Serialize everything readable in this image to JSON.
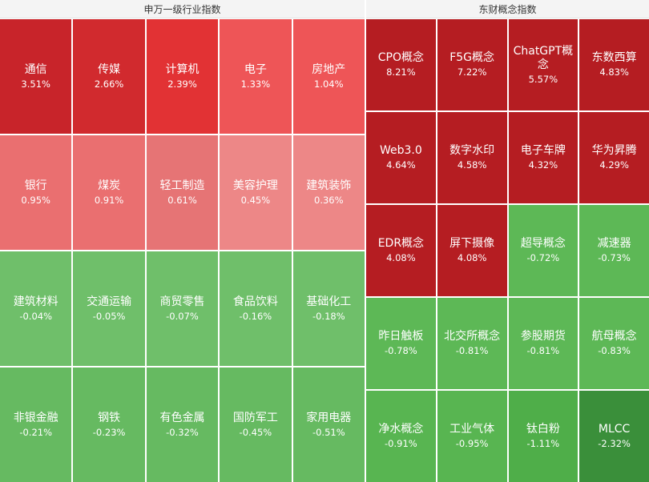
{
  "left_panel": {
    "title": "申万一级行业指数",
    "cells": [
      {
        "name": "通信",
        "pct": "3.51%",
        "color": "#c8242a"
      },
      {
        "name": "传媒",
        "pct": "2.66%",
        "color": "#d12a2e"
      },
      {
        "name": "计算机",
        "pct": "2.39%",
        "color": "#e23234"
      },
      {
        "name": "电子",
        "pct": "1.33%",
        "color": "#ee5557"
      },
      {
        "name": "房地产",
        "pct": "1.04%",
        "color": "#ee5557"
      },
      {
        "name": "银行",
        "pct": "0.95%",
        "color": "#ea6f70"
      },
      {
        "name": "煤炭",
        "pct": "0.91%",
        "color": "#ea6f70"
      },
      {
        "name": "轻工制造",
        "pct": "0.61%",
        "color": "#e67475"
      },
      {
        "name": "美容护理",
        "pct": "0.45%",
        "color": "#ed8787"
      },
      {
        "name": "建筑装饰",
        "pct": "0.36%",
        "color": "#ed8787"
      },
      {
        "name": "建筑材料",
        "pct": "-0.04%",
        "color": "#6fbf6a"
      },
      {
        "name": "交通运输",
        "pct": "-0.05%",
        "color": "#6fbf6a"
      },
      {
        "name": "商贸零售",
        "pct": "-0.07%",
        "color": "#6fbf6a"
      },
      {
        "name": "食品饮料",
        "pct": "-0.16%",
        "color": "#6fbf6a"
      },
      {
        "name": "基础化工",
        "pct": "-0.18%",
        "color": "#6fbf6a"
      },
      {
        "name": "非银金融",
        "pct": "-0.21%",
        "color": "#66ba61"
      },
      {
        "name": "钢铁",
        "pct": "-0.23%",
        "color": "#66ba61"
      },
      {
        "name": "有色金属",
        "pct": "-0.32%",
        "color": "#66ba61"
      },
      {
        "name": "国防军工",
        "pct": "-0.45%",
        "color": "#66ba61"
      },
      {
        "name": "家用电器",
        "pct": "-0.51%",
        "color": "#66ba61"
      }
    ]
  },
  "right_panel": {
    "title": "东财概念指数",
    "cells": [
      {
        "name": "CPO概念",
        "pct": "8.21%",
        "color": "#b51d22"
      },
      {
        "name": "F5G概念",
        "pct": "7.22%",
        "color": "#b51d22"
      },
      {
        "name": "ChatGPT概念",
        "pct": "5.57%",
        "color": "#b51d22"
      },
      {
        "name": "东数西算",
        "pct": "4.83%",
        "color": "#b51d22"
      },
      {
        "name": "Web3.0",
        "pct": "4.64%",
        "color": "#b51d22"
      },
      {
        "name": "数字水印",
        "pct": "4.58%",
        "color": "#b51d22"
      },
      {
        "name": "电子车牌",
        "pct": "4.32%",
        "color": "#b51d22"
      },
      {
        "name": "华为昇腾",
        "pct": "4.29%",
        "color": "#b51d22"
      },
      {
        "name": "EDR概念",
        "pct": "4.08%",
        "color": "#b51d22"
      },
      {
        "name": "屏下摄像",
        "pct": "4.08%",
        "color": "#b51d22"
      },
      {
        "name": "超导概念",
        "pct": "-0.72%",
        "color": "#5db856"
      },
      {
        "name": "减速器",
        "pct": "-0.73%",
        "color": "#5db856"
      },
      {
        "name": "昨日触板",
        "pct": "-0.78%",
        "color": "#5db856"
      },
      {
        "name": "北交所概念",
        "pct": "-0.81%",
        "color": "#5db856"
      },
      {
        "name": "参股期货",
        "pct": "-0.81%",
        "color": "#5db856"
      },
      {
        "name": "航母概念",
        "pct": "-0.83%",
        "color": "#5db856"
      },
      {
        "name": "净水概念",
        "pct": "-0.91%",
        "color": "#58b551"
      },
      {
        "name": "工业气体",
        "pct": "-0.95%",
        "color": "#58b551"
      },
      {
        "name": "钛白粉",
        "pct": "-1.11%",
        "color": "#4fae49"
      },
      {
        "name": "MLCC",
        "pct": "-2.32%",
        "color": "#3a8f3a"
      }
    ]
  }
}
